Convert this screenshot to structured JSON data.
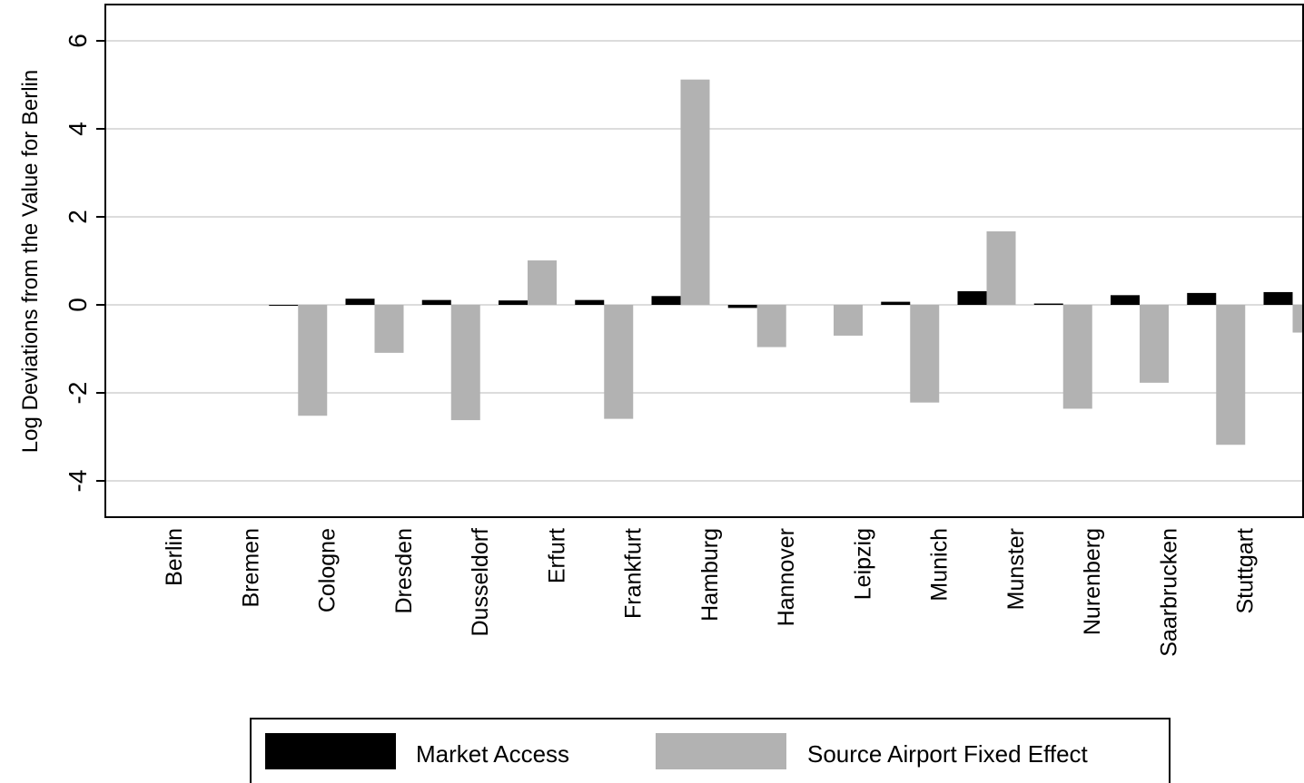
{
  "chart_data": {
    "type": "bar",
    "title": "",
    "xlabel": "",
    "ylabel": "Log Deviations from the Value for Berlin",
    "ylim": [
      -4.8,
      6.8
    ],
    "yticks": [
      6,
      4,
      2,
      0,
      -2,
      -4
    ],
    "ytick_labels": [
      "6",
      "4",
      "2",
      "0",
      "-2",
      "-4"
    ],
    "grid": true,
    "legend_position": "bottom",
    "categories": [
      "Berlin",
      "Bremen",
      "Cologne",
      "Dresden",
      "Dusseldorf",
      "Erfurt",
      "Frankfurt",
      "Hamburg",
      "Hannover",
      "Leipzig",
      "Munich",
      "Munster",
      "Nurenberg",
      "Saarbrucken",
      "Stuttgart"
    ],
    "series": [
      {
        "name": "Market Access",
        "color": "#000000",
        "values": [
          0,
          -0.02,
          0.14,
          0.11,
          0.1,
          0.11,
          0.2,
          -0.07,
          0.0,
          0.07,
          0.31,
          0.03,
          0.22,
          0.27,
          0.29
        ]
      },
      {
        "name": "Source Airport Fixed Effect",
        "color": "#b2b2b2",
        "values": [
          0,
          -2.52,
          -1.09,
          -2.62,
          1.01,
          -2.59,
          5.12,
          -0.96,
          -0.7,
          -2.22,
          1.67,
          -2.36,
          -1.77,
          -3.18,
          -0.63
        ]
      }
    ]
  }
}
